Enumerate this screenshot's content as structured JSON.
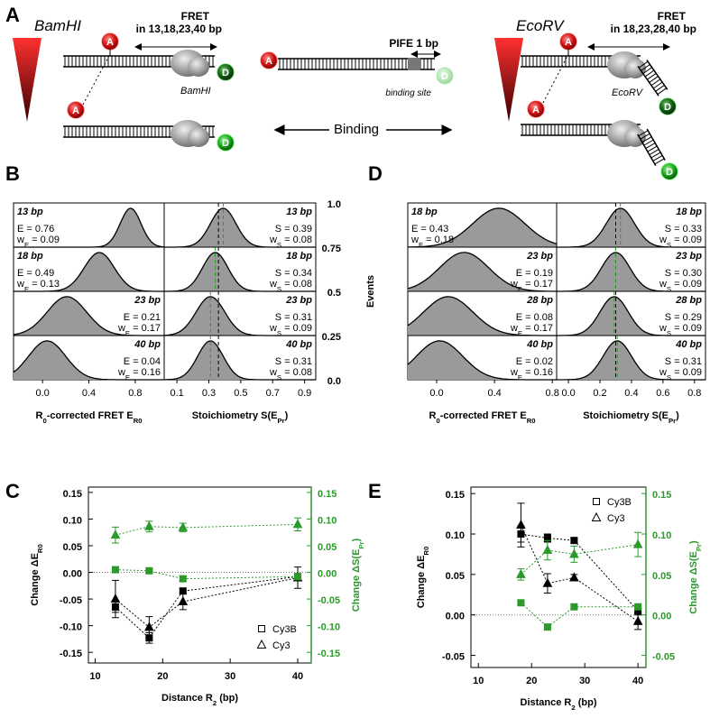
{
  "panel_labels": [
    "A",
    "B",
    "C",
    "D",
    "E"
  ],
  "diagram": {
    "bamhi_title": "BamHI",
    "bamhi_fret": "FRET",
    "bamhi_dist": "in 13,18,23,40 bp",
    "bamhi_enzyme": "BamHI",
    "pife": "PIFE 1 bp",
    "binding_site": "binding site",
    "binding": "Binding",
    "ecorv_title": "EcoRV",
    "ecorv_fret": "FRET",
    "ecorv_dist": "in 18,23,28,40 bp",
    "ecorv_enzyme": "EcoRV",
    "acceptor": "A",
    "donor": "D"
  },
  "chart_data": [
    {
      "type": "histogram-grid",
      "color": "#9a9a9a",
      "fit_color": "#000000",
      "s_line_color": "#2a9a2a",
      "s_ref": 0.36,
      "xlim_E": [
        -0.25,
        1.05
      ],
      "xticks_E": [
        {
          "value": 0,
          "label": "0.0"
        },
        0.4,
        0.8
      ],
      "xlim_S": [
        0.02,
        0.97
      ],
      "xticks_S": [
        0.1,
        0.3,
        0.5,
        0.7,
        0.9
      ],
      "xlabel_E": [
        {
          "t": "R"
        },
        {
          "t": "0",
          "sub": true
        },
        {
          "t": "-corrected FRET E"
        },
        {
          "t": "R0",
          "sub": true
        }
      ],
      "xlabel_S": [
        {
          "t": "Stoichiometry S(E"
        },
        {
          "t": "Pr",
          "sub": true
        },
        {
          "t": ")"
        }
      ],
      "rows": [
        {
          "label": "13 bp",
          "E": 0.76,
          "E_label": "E = 0.76",
          "wE": 0.09,
          "wE_label": [
            {
              "t": "w"
            },
            {
              "t": "E",
              "sub": true
            },
            {
              "t": " = 0.09"
            }
          ],
          "S": 0.39,
          "S_label": "S = 0.39",
          "wS": 0.08,
          "wS_label": [
            {
              "t": "w"
            },
            {
              "t": "S",
              "sub": true
            },
            {
              "t": " = 0.08"
            }
          ]
        },
        {
          "label": "18 bp",
          "E": 0.49,
          "E_label": "E = 0.49",
          "wE": 0.13,
          "wE_label": [
            {
              "t": "w"
            },
            {
              "t": "E",
              "sub": true
            },
            {
              "t": " = 0.13"
            }
          ],
          "S": 0.34,
          "S_label": "S = 0.34",
          "wS": 0.08,
          "wS_label": [
            {
              "t": "w"
            },
            {
              "t": "S",
              "sub": true
            },
            {
              "t": " = 0.08"
            }
          ]
        },
        {
          "label": "23 bp",
          "E": 0.21,
          "E_label": "E = 0.21",
          "wE": 0.17,
          "wE_label": [
            {
              "t": "w"
            },
            {
              "t": "E",
              "sub": true
            },
            {
              "t": " = 0.17"
            }
          ],
          "S": 0.31,
          "S_label": "S = 0.31",
          "wS": 0.09,
          "wS_label": [
            {
              "t": "w"
            },
            {
              "t": "S",
              "sub": true
            },
            {
              "t": " = 0.09"
            }
          ]
        },
        {
          "label": "40 bp",
          "E": 0.04,
          "E_label": "E = 0.04",
          "wE": 0.16,
          "wE_label": [
            {
              "t": "w"
            },
            {
              "t": "E",
              "sub": true
            },
            {
              "t": " = 0.16"
            }
          ],
          "S": 0.31,
          "S_label": "S = 0.31",
          "wS": 0.08,
          "wS_label": [
            {
              "t": "w"
            },
            {
              "t": "S",
              "sub": true
            },
            {
              "t": " = 0.08"
            }
          ]
        }
      ]
    },
    {
      "type": "histogram-grid",
      "color": "#9a9a9a",
      "fit_color": "#000000",
      "s_line_color": "#2a9a2a",
      "s_ref": 0.3,
      "ylim": [
        0,
        1
      ],
      "yticks": [
        {
          "value": 0,
          "label": "0.0"
        },
        0.25,
        0.5,
        0.75,
        {
          "value": 1,
          "label": "1.0"
        }
      ],
      "ylabel": "Events",
      "xlim_E": [
        -0.2,
        0.83
      ],
      "xticks_E": [
        {
          "value": 0,
          "label": "0.0"
        },
        0.4,
        0.8
      ],
      "xlim_S": [
        -0.075,
        0.87
      ],
      "xticks_S": [
        {
          "value": 0,
          "label": "0.0"
        },
        0.2,
        0.4,
        0.6,
        0.8
      ],
      "xlabel_E": [
        {
          "t": "R"
        },
        {
          "t": "0",
          "sub": true
        },
        {
          "t": "-corrected FRET E"
        },
        {
          "t": "R0",
          "sub": true
        }
      ],
      "xlabel_S": [
        {
          "t": "Stoichiometry S(E"
        },
        {
          "t": "Pr",
          "sub": true
        },
        {
          "t": ")"
        }
      ],
      "rows": [
        {
          "label": "18 bp",
          "E": 0.43,
          "E_label": "E = 0.43",
          "wE": 0.18,
          "wE_label": [
            {
              "t": "w"
            },
            {
              "t": "E",
              "sub": true
            },
            {
              "t": " = 0.18"
            }
          ],
          "S": 0.33,
          "S_label": "S = 0.33",
          "wS": 0.09,
          "wS_label": [
            {
              "t": "w"
            },
            {
              "t": "S",
              "sub": true
            },
            {
              "t": " = 0.09"
            }
          ]
        },
        {
          "label": "23 bp",
          "E": 0.19,
          "E_label": "E = 0.19",
          "wE": 0.17,
          "wE_label": [
            {
              "t": "w"
            },
            {
              "t": "E",
              "sub": true
            },
            {
              "t": " = 0.17"
            }
          ],
          "S": 0.3,
          "S_label": "S = 0.30",
          "wS": 0.09,
          "wS_label": [
            {
              "t": "w"
            },
            {
              "t": "S",
              "sub": true
            },
            {
              "t": " = 0.09"
            }
          ]
        },
        {
          "label": "28 bp",
          "E": 0.08,
          "E_label": "E = 0.08",
          "wE": 0.17,
          "wE_label": [
            {
              "t": "w"
            },
            {
              "t": "E",
              "sub": true
            },
            {
              "t": " = 0.17"
            }
          ],
          "S": 0.29,
          "S_label": "S = 0.29",
          "wS": 0.09,
          "wS_label": [
            {
              "t": "w"
            },
            {
              "t": "S",
              "sub": true
            },
            {
              "t": " = 0.09"
            }
          ]
        },
        {
          "label": "40 bp",
          "E": 0.02,
          "E_label": "E = 0.02",
          "wE": 0.16,
          "wE_label": [
            {
              "t": "w"
            },
            {
              "t": "E",
              "sub": true
            },
            {
              "t": " = 0.16"
            }
          ],
          "S": 0.31,
          "S_label": "S = 0.31",
          "wS": 0.09,
          "wS_label": [
            {
              "t": "w"
            },
            {
              "t": "S",
              "sub": true
            },
            {
              "t": " = 0.09"
            }
          ]
        }
      ]
    },
    {
      "type": "line",
      "legend": "lower right",
      "hline": 0,
      "y2color": "#2a9a2a",
      "xlabel": [
        {
          "t": "Distance R"
        },
        {
          "t": "2",
          "sub": true
        },
        {
          "t": " (bp)"
        }
      ],
      "ylabel": [
        {
          "t": "Change ΔE"
        },
        {
          "t": "R0",
          "sub": true
        }
      ],
      "y2label": [
        {
          "t": "Change ΔS(E"
        },
        {
          "t": "Pr",
          "sub": true
        },
        {
          "t": ")"
        }
      ],
      "x": [
        13,
        18,
        23,
        40
      ],
      "xlim": [
        9,
        42
      ],
      "xticks": [
        10,
        20,
        30,
        40
      ],
      "ylim": [
        -0.17,
        0.16
      ],
      "yticks": [
        0.15,
        {
          "value": 0.1,
          "label": "0.10"
        },
        0.05,
        {
          "value": 0,
          "label": "0.00"
        },
        -0.05,
        {
          "value": -0.1,
          "label": "-0.10"
        },
        -0.15
      ],
      "y2lim": [
        -0.17,
        0.16
      ],
      "y2ticks": [
        0.15,
        {
          "value": 0.1,
          "label": "0.10"
        },
        0.05,
        {
          "value": 0,
          "label": "0.00"
        },
        -0.05,
        {
          "value": -0.1,
          "label": "-0.10"
        },
        -0.15
      ],
      "series": [
        {
          "name": "Cy3B",
          "color": "#000000",
          "marker": "square",
          "values": [
            -0.065,
            -0.123,
            -0.035,
            -0.008
          ],
          "errors": [
            0.01,
            0.01,
            0.005,
            0.005
          ]
        },
        {
          "name": "Cy3",
          "color": "#000000",
          "marker": "triangle",
          "values": [
            -0.05,
            -0.103,
            -0.055,
            -0.01
          ],
          "errors": [
            0.035,
            0.02,
            0.015,
            0.02
          ]
        },
        {
          "name": "Cy3B",
          "color": "#2a9a2a",
          "marker": "square",
          "axis": "y2",
          "values": [
            0.005,
            0.003,
            -0.012,
            -0.008
          ],
          "errors": [
            0.003,
            0.005,
            0.005,
            0.005
          ]
        },
        {
          "name": "Cy3",
          "color": "#2a9a2a",
          "marker": "triangle",
          "axis": "y2",
          "values": [
            0.07,
            0.086,
            0.084,
            0.09
          ],
          "errors": [
            0.015,
            0.01,
            0.008,
            0.012
          ]
        }
      ]
    },
    {
      "type": "line",
      "legend": "upper right",
      "hline": 0,
      "y2color": "#2a9a2a",
      "xlabel": [
        {
          "t": "Distance R"
        },
        {
          "t": "2",
          "sub": true
        },
        {
          "t": " (bp)"
        }
      ],
      "ylabel": [
        {
          "t": "Change ΔE"
        },
        {
          "t": "R0",
          "sub": true
        }
      ],
      "y2label": [
        {
          "t": "Change ΔS(E"
        },
        {
          "t": "Pr",
          "sub": true
        },
        {
          "t": ")"
        }
      ],
      "x": [
        18,
        23,
        28,
        40
      ],
      "xlim": [
        8.6,
        41.5
      ],
      "xticks": [
        10,
        20,
        30,
        40
      ],
      "ylim": [
        -0.065,
        0.158
      ],
      "yticks": [
        0.15,
        {
          "value": 0.1,
          "label": "0.10"
        },
        0.05,
        {
          "value": 0,
          "label": "0.00"
        },
        -0.05
      ],
      "y2lim": [
        -0.065,
        0.158
      ],
      "y2ticks": [
        0.15,
        {
          "value": 0.1,
          "label": "0.10"
        },
        0.05,
        {
          "value": 0,
          "label": "0.00"
        },
        -0.05
      ],
      "series": [
        {
          "name": "Cy3B",
          "color": "#000000",
          "marker": "square",
          "values": [
            0.1,
            0.095,
            0.092,
            0.005
          ],
          "errors": [
            0.01,
            0.005,
            0.003,
            0.005
          ]
        },
        {
          "name": "Cy3",
          "color": "#000000",
          "marker": "triangle",
          "values": [
            0.111,
            0.039,
            0.046,
            -0.008
          ],
          "errors": [
            0.027,
            0.012,
            0.004,
            0.01
          ]
        },
        {
          "name": "Cy3B",
          "color": "#2a9a2a",
          "marker": "square",
          "axis": "y2",
          "values": [
            0.015,
            -0.015,
            0.01,
            0.01
          ],
          "errors": [
            0.003,
            0.003,
            0.003,
            0.003
          ]
        },
        {
          "name": "Cy3",
          "color": "#2a9a2a",
          "marker": "triangle",
          "axis": "y2",
          "values": [
            0.05,
            0.08,
            0.075,
            0.087
          ],
          "errors": [
            0.007,
            0.012,
            0.01,
            0.015
          ]
        }
      ]
    }
  ]
}
